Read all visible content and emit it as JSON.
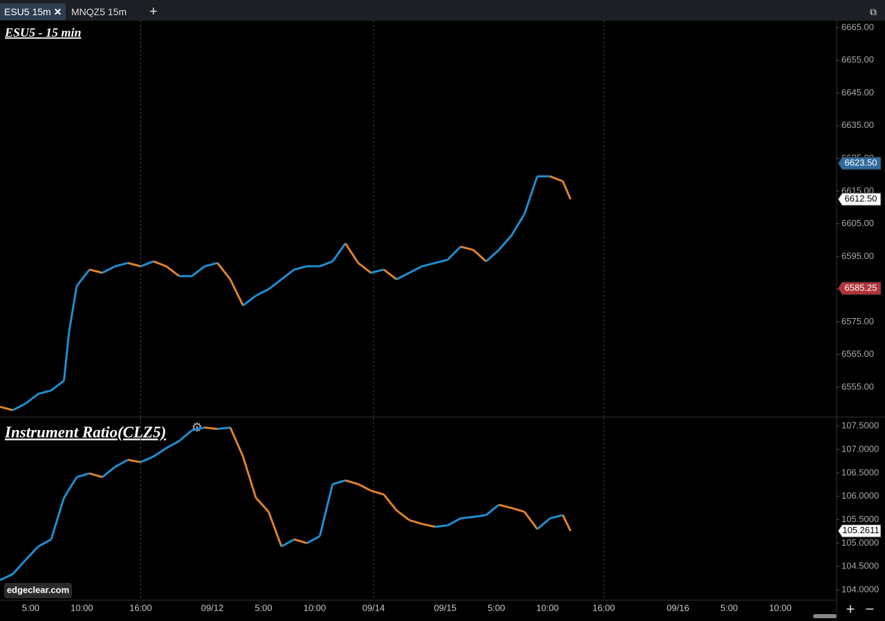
{
  "tabs": [
    "ESU5 15m",
    "MNQZ5 15m"
  ],
  "watermark": "edgeclear.com",
  "chart_data": [
    {
      "type": "candle-line",
      "title": "ESU5 - 15 min",
      "up_color": "#1f8fd0",
      "down_color": "#e0822a",
      "x": [
        0,
        5,
        10,
        15,
        20,
        25,
        27,
        30,
        35,
        40,
        45,
        50,
        55,
        60,
        65,
        70,
        75,
        80,
        85,
        90,
        95,
        100,
        105,
        110,
        115,
        120,
        125,
        130,
        135,
        140,
        145,
        150,
        155,
        160,
        165,
        170,
        175,
        180,
        185,
        190,
        195,
        200,
        205,
        210,
        215,
        220,
        223
      ],
      "values": [
        6549,
        6548,
        6550,
        6553,
        6554,
        6557,
        6572,
        6586,
        6591,
        6590,
        6592,
        6593,
        6592,
        6593.5,
        6592,
        6589,
        6589,
        6592,
        6593,
        6588,
        6580,
        6583,
        6585,
        6588,
        6591,
        6592,
        6592,
        6593.5,
        6599,
        6593,
        6590,
        6591,
        6588,
        6590,
        6592,
        6593,
        6594,
        6598,
        6597,
        6593.5,
        6597,
        6601.5,
        6608,
        6619.5,
        6619.5,
        6618,
        6612.5
      ],
      "xlim": [
        0,
        327
      ],
      "ylim": [
        6545.9,
        6667.1
      ],
      "yticks": [
        {
          "value": 6555,
          "label": "6555.00"
        },
        {
          "value": 6565,
          "label": "6565.00"
        },
        {
          "value": 6575,
          "label": "6575.00"
        },
        {
          "value": 6585,
          "label": "6585.00"
        },
        {
          "value": 6595,
          "label": "6595.00"
        },
        {
          "value": 6605,
          "label": "6605.00"
        },
        {
          "value": 6615,
          "label": "6615.00"
        },
        {
          "value": 6625,
          "label": "6625.00"
        },
        {
          "value": 6635,
          "label": "6635.00"
        },
        {
          "value": 6645,
          "label": "6645.00"
        },
        {
          "value": 6655,
          "label": "6655.00"
        },
        {
          "value": 6665,
          "label": "6665.00"
        }
      ],
      "markers": [
        {
          "value": 6623.5,
          "label": "6623.50",
          "color": "#2f6b9e"
        },
        {
          "value": 6612.5,
          "label": "6612.50",
          "color": "#ffffff"
        },
        {
          "value": 6585.25,
          "label": "6585.25",
          "color": "#b0343a"
        }
      ]
    },
    {
      "type": "candle-line",
      "title": "Instrument Ratio(CLZ5)",
      "up_color": "#1f8fd0",
      "down_color": "#e0822a",
      "x": [
        0,
        5,
        10,
        15,
        20,
        25,
        30,
        35,
        40,
        45,
        50,
        55,
        60,
        65,
        70,
        75,
        80,
        85,
        90,
        95,
        100,
        105,
        110,
        115,
        120,
        125,
        130,
        135,
        140,
        145,
        150,
        155,
        160,
        165,
        170,
        175,
        180,
        185,
        190,
        195,
        200,
        205,
        210,
        215,
        220,
        223
      ],
      "values": [
        104.21,
        104.34,
        104.64,
        104.93,
        105.08,
        105.97,
        106.41,
        106.49,
        106.41,
        106.63,
        106.78,
        106.73,
        106.85,
        107.03,
        107.18,
        107.41,
        107.47,
        107.44,
        107.47,
        106.85,
        105.97,
        105.67,
        104.93,
        105.08,
        105.0,
        105.15,
        106.26,
        106.34,
        106.26,
        106.12,
        106.04,
        105.7,
        105.49,
        105.41,
        105.35,
        105.38,
        105.53,
        105.56,
        105.6,
        105.82,
        105.75,
        105.67,
        105.3,
        105.53,
        105.6,
        105.26
      ],
      "xlim": [
        0,
        327
      ],
      "ylim": [
        103.78,
        107.68
      ],
      "yticks": [
        {
          "value": 104,
          "label": "104.0000"
        },
        {
          "value": 104.5,
          "label": "104.5000"
        },
        {
          "value": 105,
          "label": "105.0000"
        },
        {
          "value": 105.5,
          "label": "105.5000"
        },
        {
          "value": 106,
          "label": "106.0000"
        },
        {
          "value": 106.5,
          "label": "106.5000"
        },
        {
          "value": 107,
          "label": "107.0000"
        },
        {
          "value": 107.5,
          "label": "107.5000"
        }
      ],
      "markers": [
        {
          "value": 105.2611,
          "label": "105.2611",
          "color": "#ffffff"
        }
      ],
      "xticks": [
        {
          "value": 12,
          "label": "5:00"
        },
        {
          "value": 32,
          "label": "10:00"
        },
        {
          "value": 55,
          "label": "16:00",
          "grid": true
        },
        {
          "value": 83,
          "label": "09/12"
        },
        {
          "value": 103,
          "label": "5:00"
        },
        {
          "value": 123,
          "label": "10:00"
        },
        {
          "value": 146,
          "label": "09/14",
          "grid": true
        },
        {
          "value": 174,
          "label": "09/15"
        },
        {
          "value": 194,
          "label": "5:00"
        },
        {
          "value": 214,
          "label": "10:00"
        },
        {
          "value": 236,
          "label": "16:00",
          "grid": true
        },
        {
          "value": 265,
          "label": "09/16"
        },
        {
          "value": 285,
          "label": "5:00"
        },
        {
          "value": 305,
          "label": "10:00"
        }
      ]
    }
  ]
}
